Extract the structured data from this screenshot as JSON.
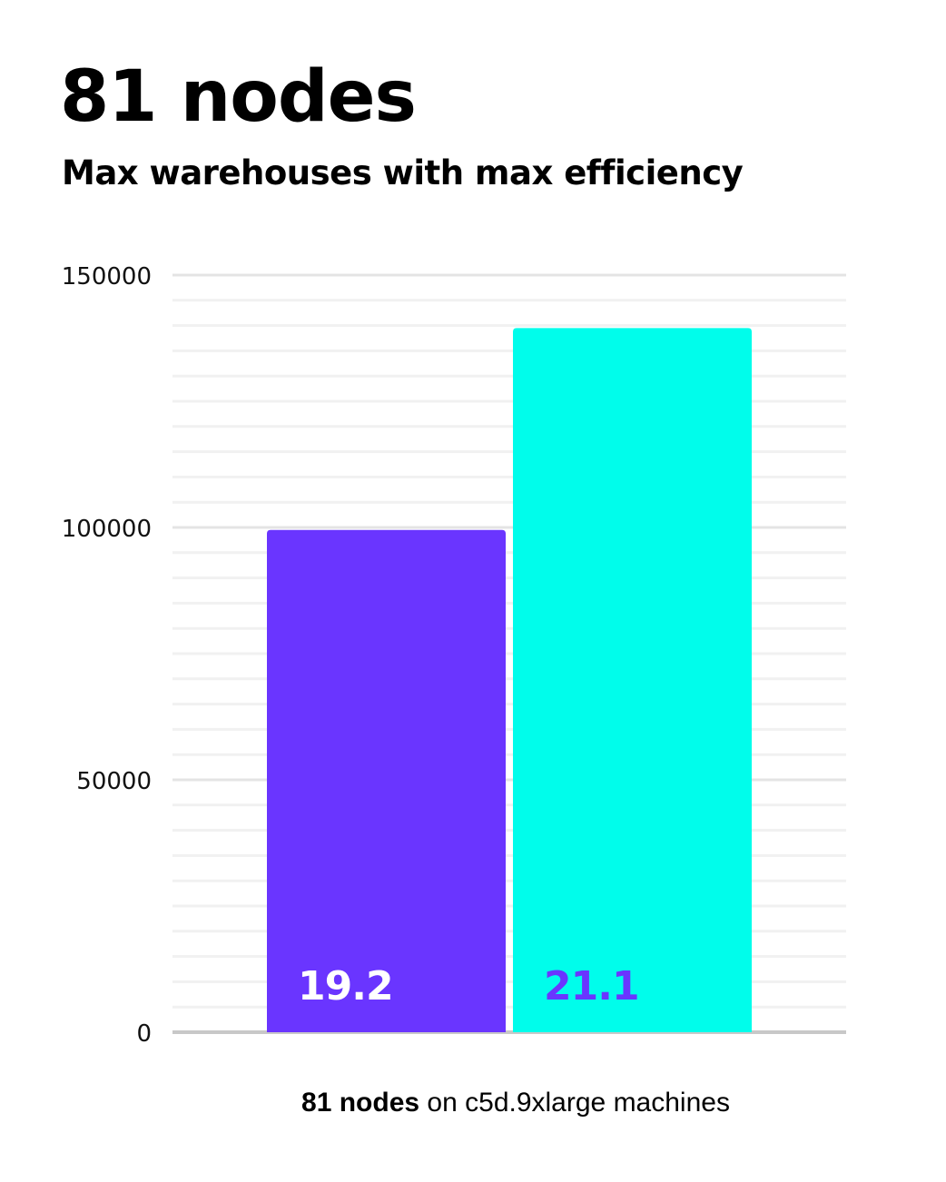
{
  "header": {
    "title": "81 nodes",
    "subtitle": "Max warehouses with max efficiency"
  },
  "chart_data": {
    "type": "bar",
    "title": "81 nodes",
    "subtitle": "Max warehouses with max efficiency",
    "categories": [
      "",
      ""
    ],
    "values": [
      99500,
      139500
    ],
    "bar_labels": [
      "19.2",
      "21.1"
    ],
    "bar_colors": [
      "#6a35ff",
      "#00fdeb"
    ],
    "label_colors": [
      "#ffffff",
      "#6a35ff"
    ],
    "ylim": [
      0,
      150000
    ],
    "yticks": [
      0,
      50000,
      100000,
      150000
    ],
    "ytick_labels": [
      "0",
      "50000",
      "100000",
      "150000"
    ],
    "minor_grid_step": 5000,
    "grid": true,
    "xlabel_bold": "81 nodes",
    "xlabel_rest": " on c5d.9xlarge machines"
  }
}
